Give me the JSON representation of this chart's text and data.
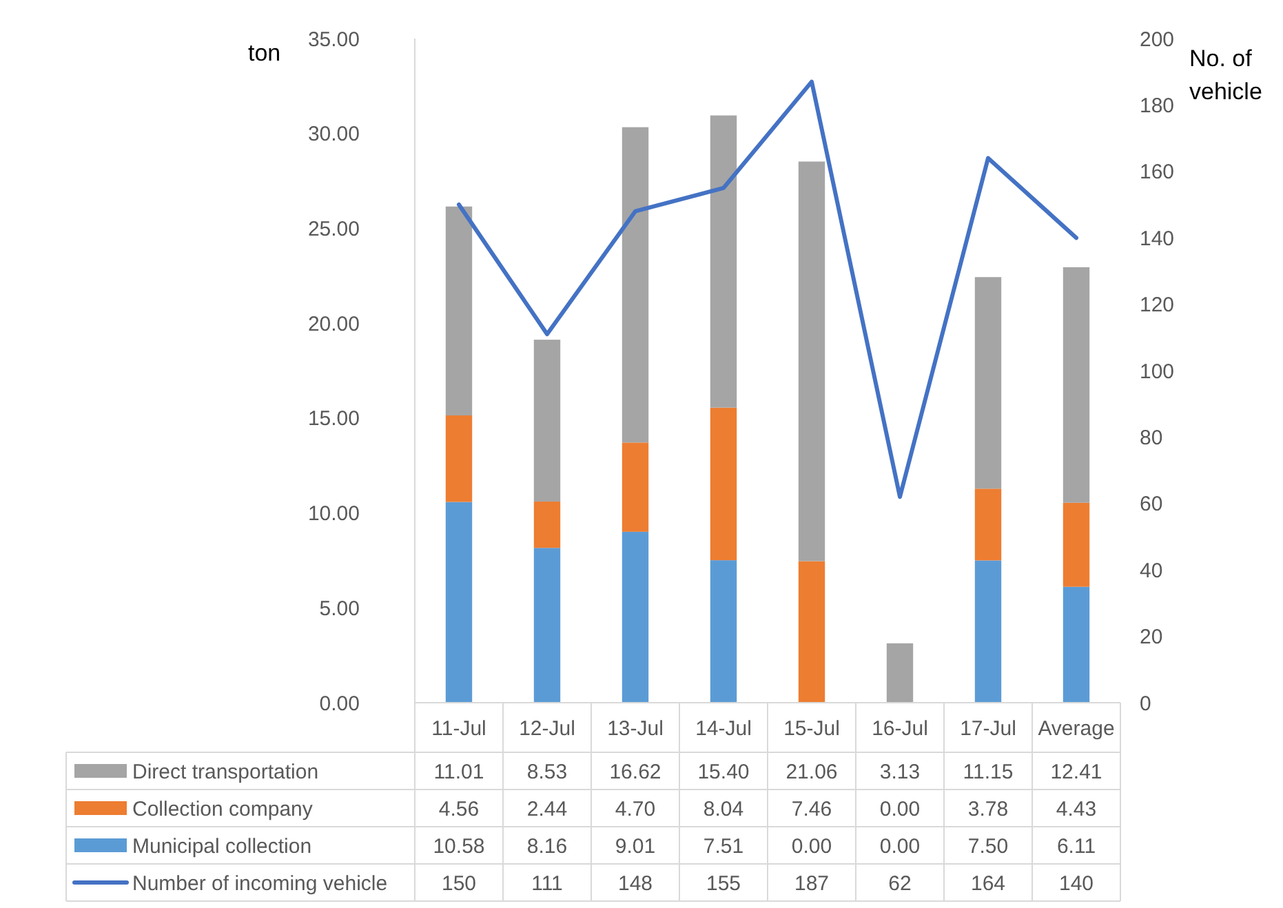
{
  "chart_data": {
    "type": "bar",
    "stacked": true,
    "ylabel": "ton",
    "y2label": "No. of vehicle",
    "categories": [
      "11-Jul",
      "12-Jul",
      "13-Jul",
      "14-Jul",
      "15-Jul",
      "16-Jul",
      "17-Jul",
      "Average"
    ],
    "ylim": [
      0,
      35
    ],
    "yticks": [
      {
        "value": 0,
        "label": "0.00"
      },
      {
        "value": 5,
        "label": "5.00"
      },
      {
        "value": 10,
        "label": "10.00"
      },
      {
        "value": 15,
        "label": "15.00"
      },
      {
        "value": 20,
        "label": "20.00"
      },
      {
        "value": 25,
        "label": "25.00"
      },
      {
        "value": 30,
        "label": "30.00"
      },
      {
        "value": 35,
        "label": "35.00"
      }
    ],
    "y2lim": [
      0,
      200
    ],
    "y2ticks": [
      0,
      20,
      40,
      60,
      80,
      100,
      120,
      140,
      160,
      180,
      200
    ],
    "grid": false,
    "legend": "bottom",
    "series": [
      {
        "name": "Municipal collection",
        "color": "#5b9bd5",
        "values": [
          10.58,
          8.16,
          9.01,
          7.51,
          0,
          0,
          7.5,
          6.11
        ],
        "value_labels": [
          "10.58",
          "8.16",
          "9.01",
          "7.51",
          "0.00",
          "0.00",
          "7.50",
          "6.11"
        ]
      },
      {
        "name": "Collection company",
        "color": "#ed7d31",
        "values": [
          4.56,
          2.44,
          4.7,
          8.04,
          7.46,
          0,
          3.78,
          4.43
        ],
        "value_labels": [
          "4.56",
          "2.44",
          "4.70",
          "8.04",
          "7.46",
          "0.00",
          "3.78",
          "4.43"
        ]
      },
      {
        "name": "Direct transportation",
        "color": "#a5a5a5",
        "values": [
          11.01,
          8.53,
          16.62,
          15.4,
          21.06,
          3.13,
          11.15,
          12.41
        ],
        "value_labels": [
          "11.01",
          "8.53",
          "16.62",
          "15.40",
          "21.06",
          "3.13",
          "11.15",
          "12.41"
        ]
      },
      {
        "name": "Number of incoming vehicle",
        "type": "line",
        "axis": "y2",
        "color": "#4472c4",
        "values": [
          150,
          111,
          148,
          155,
          187,
          62,
          164,
          140
        ],
        "value_labels": [
          "150",
          "111",
          "148",
          "155",
          "187",
          "62",
          "164",
          "140"
        ]
      }
    ]
  }
}
